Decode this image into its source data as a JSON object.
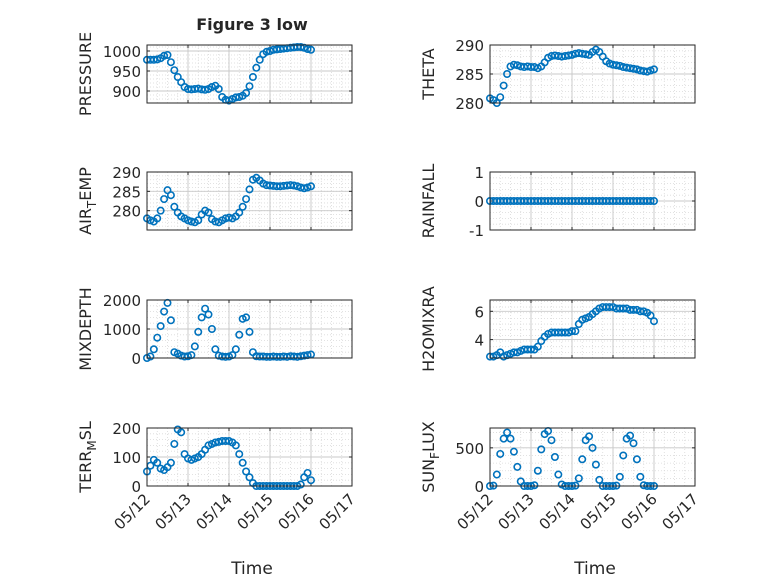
{
  "figure_title": "Figure 3 low",
  "marker_color": "#0072BD",
  "chart_data": [
    {
      "type": "scatter",
      "id": "pressure",
      "ylabel_parts": [
        "PRESSURE"
      ],
      "ylim": [
        870,
        1015
      ],
      "yticks": [
        900,
        950,
        1000
      ],
      "ytick_labels": [
        "900",
        "950",
        "1000"
      ],
      "xticks": [
        "05/12",
        "05/13",
        "05/14",
        "05/15",
        "05/16",
        "05/17"
      ],
      "x": [
        "05/12 00:00",
        "05/12 02:00",
        "05/12 04:00",
        "05/12 06:00",
        "05/12 08:00",
        "05/12 10:00",
        "05/12 12:00",
        "05/12 14:00",
        "05/12 16:00",
        "05/12 18:00",
        "05/12 20:00",
        "05/12 22:00",
        "05/13 00:00",
        "05/13 02:00",
        "05/13 04:00",
        "05/13 06:00",
        "05/13 08:00",
        "05/13 10:00",
        "05/13 12:00",
        "05/13 14:00",
        "05/13 16:00",
        "05/13 18:00",
        "05/13 20:00",
        "05/13 22:00",
        "05/14 00:00",
        "05/14 02:00",
        "05/14 04:00",
        "05/14 06:00",
        "05/14 08:00",
        "05/14 10:00",
        "05/14 12:00",
        "05/14 14:00",
        "05/14 16:00",
        "05/14 18:00",
        "05/14 20:00",
        "05/14 22:00",
        "05/15 00:00",
        "05/15 02:00",
        "05/15 04:00",
        "05/15 06:00",
        "05/15 08:00",
        "05/15 10:00",
        "05/15 12:00",
        "05/15 14:00",
        "05/15 16:00",
        "05/15 18:00",
        "05/15 20:00",
        "05/15 22:00",
        "05/16 00:00"
      ],
      "y": [
        978,
        978,
        978,
        979,
        982,
        988,
        990,
        972,
        952,
        935,
        922,
        910,
        905,
        904,
        905,
        906,
        904,
        903,
        905,
        910,
        913,
        905,
        885,
        878,
        876,
        880,
        884,
        885,
        888,
        895,
        912,
        935,
        958,
        978,
        992,
        998,
        1000,
        1003,
        1004,
        1005,
        1006,
        1007,
        1008,
        1009,
        1010,
        1010,
        1008,
        1005,
        1003
      ]
    },
    {
      "type": "scatter",
      "id": "theta",
      "ylabel_parts": [
        "THETA"
      ],
      "ylim": [
        280,
        290
      ],
      "yticks": [
        280,
        285,
        290
      ],
      "ytick_labels": [
        "280",
        "285",
        "290"
      ],
      "xticks": [
        "05/12",
        "05/13",
        "05/14",
        "05/15",
        "05/16",
        "05/17"
      ],
      "x": [
        "05/12 00:00",
        "05/12 02:00",
        "05/12 04:00",
        "05/12 06:00",
        "05/12 08:00",
        "05/12 10:00",
        "05/12 12:00",
        "05/12 14:00",
        "05/12 16:00",
        "05/12 18:00",
        "05/12 20:00",
        "05/12 22:00",
        "05/13 00:00",
        "05/13 02:00",
        "05/13 04:00",
        "05/13 06:00",
        "05/13 08:00",
        "05/13 10:00",
        "05/13 12:00",
        "05/13 14:00",
        "05/13 16:00",
        "05/13 18:00",
        "05/13 20:00",
        "05/13 22:00",
        "05/14 00:00",
        "05/14 02:00",
        "05/14 04:00",
        "05/14 06:00",
        "05/14 08:00",
        "05/14 10:00",
        "05/14 12:00",
        "05/14 14:00",
        "05/14 16:00",
        "05/14 18:00",
        "05/14 20:00",
        "05/14 22:00",
        "05/15 00:00",
        "05/15 02:00",
        "05/15 04:00",
        "05/15 06:00",
        "05/15 08:00",
        "05/15 10:00",
        "05/15 12:00",
        "05/15 14:00",
        "05/15 16:00",
        "05/15 18:00",
        "05/15 20:00",
        "05/15 22:00",
        "05/16 00:00"
      ],
      "y": [
        280.8,
        280.5,
        280.0,
        281.0,
        283.0,
        285.0,
        286.3,
        286.6,
        286.5,
        286.3,
        286.2,
        286.3,
        286.2,
        286.2,
        286.0,
        286.3,
        287.0,
        287.8,
        288.1,
        288.2,
        288.1,
        288.0,
        288.1,
        288.2,
        288.3,
        288.5,
        288.6,
        288.5,
        288.4,
        288.3,
        288.8,
        289.2,
        288.8,
        288.0,
        287.2,
        286.8,
        286.6,
        286.5,
        286.4,
        286.2,
        286.1,
        286.0,
        285.9,
        285.8,
        285.6,
        285.5,
        285.4,
        285.6,
        285.8
      ]
    },
    {
      "type": "scatter",
      "id": "air_temp",
      "ylabel_parts": [
        "AIR",
        "T",
        "EMP"
      ],
      "ylim": [
        275,
        290
      ],
      "yticks": [
        280,
        285,
        290
      ],
      "ytick_labels": [
        "280",
        "285",
        "290"
      ],
      "xticks": [
        "05/12",
        "05/13",
        "05/14",
        "05/15",
        "05/16",
        "05/17"
      ],
      "x": [
        "05/12 00:00",
        "05/12 02:00",
        "05/12 04:00",
        "05/12 06:00",
        "05/12 08:00",
        "05/12 10:00",
        "05/12 12:00",
        "05/12 14:00",
        "05/12 16:00",
        "05/12 18:00",
        "05/12 20:00",
        "05/12 22:00",
        "05/13 00:00",
        "05/13 02:00",
        "05/13 04:00",
        "05/13 06:00",
        "05/13 08:00",
        "05/13 10:00",
        "05/13 12:00",
        "05/13 14:00",
        "05/13 16:00",
        "05/13 18:00",
        "05/13 20:00",
        "05/13 22:00",
        "05/14 00:00",
        "05/14 02:00",
        "05/14 04:00",
        "05/14 06:00",
        "05/14 08:00",
        "05/14 10:00",
        "05/14 12:00",
        "05/14 14:00",
        "05/14 16:00",
        "05/14 18:00",
        "05/14 20:00",
        "05/14 22:00",
        "05/15 00:00",
        "05/15 02:00",
        "05/15 04:00",
        "05/15 06:00",
        "05/15 08:00",
        "05/15 10:00",
        "05/15 12:00",
        "05/15 14:00",
        "05/15 16:00",
        "05/15 18:00",
        "05/15 20:00",
        "05/15 22:00",
        "05/16 00:00"
      ],
      "y": [
        278.0,
        277.5,
        277.2,
        278.0,
        280.0,
        283.0,
        285.3,
        284.0,
        281.0,
        279.5,
        278.5,
        278.0,
        277.5,
        277.2,
        277.0,
        277.5,
        279.0,
        280.0,
        279.5,
        277.8,
        277.2,
        277.0,
        277.5,
        278.0,
        278.2,
        278.0,
        278.5,
        279.5,
        281.0,
        283.0,
        285.5,
        288.0,
        288.5,
        287.8,
        287.0,
        286.6,
        286.5,
        286.4,
        286.3,
        286.3,
        286.4,
        286.5,
        286.6,
        286.5,
        286.3,
        286.0,
        285.8,
        286.0,
        286.3
      ]
    },
    {
      "type": "scatter",
      "id": "rainfall",
      "ylabel_parts": [
        "RAINFALL"
      ],
      "ylim": [
        -1,
        1
      ],
      "yticks": [
        -1,
        0,
        1
      ],
      "ytick_labels": [
        "-1",
        "0",
        "1"
      ],
      "xticks": [
        "05/12",
        "05/13",
        "05/14",
        "05/15",
        "05/16",
        "05/17"
      ],
      "x": [
        "05/12 00:00",
        "05/12 02:00",
        "05/12 04:00",
        "05/12 06:00",
        "05/12 08:00",
        "05/12 10:00",
        "05/12 12:00",
        "05/12 14:00",
        "05/12 16:00",
        "05/12 18:00",
        "05/12 20:00",
        "05/12 22:00",
        "05/13 00:00",
        "05/13 02:00",
        "05/13 04:00",
        "05/13 06:00",
        "05/13 08:00",
        "05/13 10:00",
        "05/13 12:00",
        "05/13 14:00",
        "05/13 16:00",
        "05/13 18:00",
        "05/13 20:00",
        "05/13 22:00",
        "05/14 00:00",
        "05/14 02:00",
        "05/14 04:00",
        "05/14 06:00",
        "05/14 08:00",
        "05/14 10:00",
        "05/14 12:00",
        "05/14 14:00",
        "05/14 16:00",
        "05/14 18:00",
        "05/14 20:00",
        "05/14 22:00",
        "05/15 00:00",
        "05/15 02:00",
        "05/15 04:00",
        "05/15 06:00",
        "05/15 08:00",
        "05/15 10:00",
        "05/15 12:00",
        "05/15 14:00",
        "05/15 16:00",
        "05/15 18:00",
        "05/15 20:00",
        "05/15 22:00",
        "05/16 00:00"
      ],
      "y": [
        0,
        0,
        0,
        0,
        0,
        0,
        0,
        0,
        0,
        0,
        0,
        0,
        0,
        0,
        0,
        0,
        0,
        0,
        0,
        0,
        0,
        0,
        0,
        0,
        0,
        0,
        0,
        0,
        0,
        0,
        0,
        0,
        0,
        0,
        0,
        0,
        0,
        0,
        0,
        0,
        0,
        0,
        0,
        0,
        0,
        0,
        0,
        0,
        0
      ]
    },
    {
      "type": "scatter",
      "id": "mixdepth",
      "ylabel_parts": [
        "MIXDEPTH"
      ],
      "ylim": [
        0,
        2000
      ],
      "yticks": [
        0,
        1000,
        2000
      ],
      "ytick_labels": [
        "0",
        "1000",
        "2000"
      ],
      "xticks": [
        "05/12",
        "05/13",
        "05/14",
        "05/15",
        "05/16",
        "05/17"
      ],
      "x": [
        "05/12 00:00",
        "05/12 02:00",
        "05/12 04:00",
        "05/12 06:00",
        "05/12 08:00",
        "05/12 10:00",
        "05/12 12:00",
        "05/12 14:00",
        "05/12 16:00",
        "05/12 18:00",
        "05/12 20:00",
        "05/12 22:00",
        "05/13 00:00",
        "05/13 02:00",
        "05/13 04:00",
        "05/13 06:00",
        "05/13 08:00",
        "05/13 10:00",
        "05/13 12:00",
        "05/13 14:00",
        "05/13 16:00",
        "05/13 18:00",
        "05/13 20:00",
        "05/13 22:00",
        "05/14 00:00",
        "05/14 02:00",
        "05/14 04:00",
        "05/14 06:00",
        "05/14 08:00",
        "05/14 10:00",
        "05/14 12:00",
        "05/14 14:00",
        "05/14 16:00",
        "05/14 18:00",
        "05/14 20:00",
        "05/14 22:00",
        "05/15 00:00",
        "05/15 02:00",
        "05/15 04:00",
        "05/15 06:00",
        "05/15 08:00",
        "05/15 10:00",
        "05/15 12:00",
        "05/15 14:00",
        "05/15 16:00",
        "05/15 18:00",
        "05/15 20:00",
        "05/15 22:00",
        "05/16 00:00"
      ],
      "y": [
        0,
        50,
        300,
        700,
        1100,
        1600,
        1900,
        1300,
        200,
        150,
        80,
        50,
        60,
        100,
        400,
        900,
        1400,
        1700,
        1500,
        1000,
        300,
        80,
        50,
        40,
        50,
        100,
        300,
        800,
        1350,
        1400,
        900,
        200,
        60,
        50,
        50,
        40,
        40,
        50,
        40,
        40,
        50,
        40,
        60,
        50,
        40,
        60,
        80,
        100,
        120
      ]
    },
    {
      "type": "scatter",
      "id": "h2omixra",
      "ylabel_parts": [
        "H2OMIXRA"
      ],
      "ylim": [
        2.7,
        6.8
      ],
      "yticks": [
        4,
        6
      ],
      "ytick_labels": [
        "4",
        "6"
      ],
      "xticks": [
        "05/12",
        "05/13",
        "05/14",
        "05/15",
        "05/16",
        "05/17"
      ],
      "x": [
        "05/12 00:00",
        "05/12 02:00",
        "05/12 04:00",
        "05/12 06:00",
        "05/12 08:00",
        "05/12 10:00",
        "05/12 12:00",
        "05/12 14:00",
        "05/12 16:00",
        "05/12 18:00",
        "05/12 20:00",
        "05/12 22:00",
        "05/13 00:00",
        "05/13 02:00",
        "05/13 04:00",
        "05/13 06:00",
        "05/13 08:00",
        "05/13 10:00",
        "05/13 12:00",
        "05/13 14:00",
        "05/13 16:00",
        "05/13 18:00",
        "05/13 20:00",
        "05/13 22:00",
        "05/14 00:00",
        "05/14 02:00",
        "05/14 04:00",
        "05/14 06:00",
        "05/14 08:00",
        "05/14 10:00",
        "05/14 12:00",
        "05/14 14:00",
        "05/14 16:00",
        "05/14 18:00",
        "05/14 20:00",
        "05/14 22:00",
        "05/15 00:00",
        "05/15 02:00",
        "05/15 04:00",
        "05/15 06:00",
        "05/15 08:00",
        "05/15 10:00",
        "05/15 12:00",
        "05/15 14:00",
        "05/15 16:00",
        "05/15 18:00",
        "05/15 20:00",
        "05/15 22:00",
        "05/16 00:00"
      ],
      "y": [
        2.8,
        2.8,
        2.9,
        3.1,
        2.8,
        2.9,
        3.0,
        3.1,
        3.1,
        3.2,
        3.3,
        3.3,
        3.3,
        3.3,
        3.5,
        3.9,
        4.2,
        4.4,
        4.5,
        4.5,
        4.5,
        4.5,
        4.5,
        4.5,
        4.6,
        4.6,
        5.1,
        5.4,
        5.5,
        5.6,
        5.8,
        6.0,
        6.2,
        6.3,
        6.3,
        6.3,
        6.3,
        6.2,
        6.2,
        6.2,
        6.2,
        6.1,
        6.1,
        6.1,
        6.0,
        6.0,
        5.9,
        5.7,
        5.3
      ]
    },
    {
      "type": "scatter",
      "id": "terr_msl",
      "ylabel_parts": [
        "TERR",
        "M",
        "SL"
      ],
      "ylim": [
        0,
        200
      ],
      "yticks": [
        0,
        100,
        200
      ],
      "ytick_labels": [
        "0",
        "100",
        "200"
      ],
      "xticks": [
        "05/12",
        "05/13",
        "05/14",
        "05/15",
        "05/16",
        "05/17"
      ],
      "x": [
        "05/12 00:00",
        "05/12 02:00",
        "05/12 04:00",
        "05/12 06:00",
        "05/12 08:00",
        "05/12 10:00",
        "05/12 12:00",
        "05/12 14:00",
        "05/12 16:00",
        "05/12 18:00",
        "05/12 20:00",
        "05/12 22:00",
        "05/13 00:00",
        "05/13 02:00",
        "05/13 04:00",
        "05/13 06:00",
        "05/13 08:00",
        "05/13 10:00",
        "05/13 12:00",
        "05/13 14:00",
        "05/13 16:00",
        "05/13 18:00",
        "05/13 20:00",
        "05/13 22:00",
        "05/14 00:00",
        "05/14 02:00",
        "05/14 04:00",
        "05/14 06:00",
        "05/14 08:00",
        "05/14 10:00",
        "05/14 12:00",
        "05/14 14:00",
        "05/14 16:00",
        "05/14 18:00",
        "05/14 20:00",
        "05/14 22:00",
        "05/15 00:00",
        "05/15 02:00",
        "05/15 04:00",
        "05/15 06:00",
        "05/15 08:00",
        "05/15 10:00",
        "05/15 12:00",
        "05/15 14:00",
        "05/15 16:00",
        "05/15 18:00",
        "05/15 20:00",
        "05/15 22:00",
        "05/16 00:00"
      ],
      "y": [
        50,
        70,
        90,
        80,
        60,
        55,
        65,
        80,
        145,
        195,
        185,
        110,
        95,
        90,
        95,
        100,
        110,
        125,
        140,
        145,
        150,
        152,
        155,
        155,
        155,
        150,
        140,
        110,
        80,
        50,
        30,
        10,
        0,
        0,
        0,
        0,
        0,
        0,
        0,
        0,
        0,
        0,
        0,
        0,
        0,
        5,
        30,
        45,
        20
      ]
    },
    {
      "type": "scatter",
      "id": "sun_flux",
      "ylabel_parts": [
        "SUN",
        "F",
        "LUX"
      ],
      "ylim": [
        0,
        760
      ],
      "yticks": [
        0,
        500
      ],
      "ytick_labels": [
        "0",
        "500"
      ],
      "xticks": [
        "05/12",
        "05/13",
        "05/14",
        "05/15",
        "05/16",
        "05/17"
      ],
      "x": [
        "05/12 00:00",
        "05/12 02:00",
        "05/12 04:00",
        "05/12 06:00",
        "05/12 08:00",
        "05/12 10:00",
        "05/12 12:00",
        "05/12 14:00",
        "05/12 16:00",
        "05/12 18:00",
        "05/12 20:00",
        "05/12 22:00",
        "05/13 00:00",
        "05/13 02:00",
        "05/13 04:00",
        "05/13 06:00",
        "05/13 08:00",
        "05/13 10:00",
        "05/13 12:00",
        "05/13 14:00",
        "05/13 16:00",
        "05/13 18:00",
        "05/13 20:00",
        "05/13 22:00",
        "05/14 00:00",
        "05/14 02:00",
        "05/14 04:00",
        "05/14 06:00",
        "05/14 08:00",
        "05/14 10:00",
        "05/14 12:00",
        "05/14 14:00",
        "05/14 16:00",
        "05/14 18:00",
        "05/14 20:00",
        "05/14 22:00",
        "05/15 00:00",
        "05/15 02:00",
        "05/15 04:00",
        "05/15 06:00",
        "05/15 08:00",
        "05/15 10:00",
        "05/15 12:00",
        "05/15 14:00",
        "05/15 16:00",
        "05/15 18:00",
        "05/15 20:00",
        "05/15 22:00",
        "05/16 00:00"
      ],
      "y": [
        0,
        5,
        150,
        420,
        620,
        700,
        620,
        450,
        250,
        60,
        0,
        0,
        0,
        10,
        200,
        480,
        680,
        720,
        600,
        380,
        150,
        20,
        0,
        0,
        0,
        5,
        100,
        350,
        600,
        650,
        500,
        280,
        80,
        0,
        0,
        0,
        0,
        5,
        120,
        400,
        620,
        660,
        560,
        350,
        120,
        10,
        0,
        0,
        0
      ]
    }
  ],
  "xlabel": "Time"
}
